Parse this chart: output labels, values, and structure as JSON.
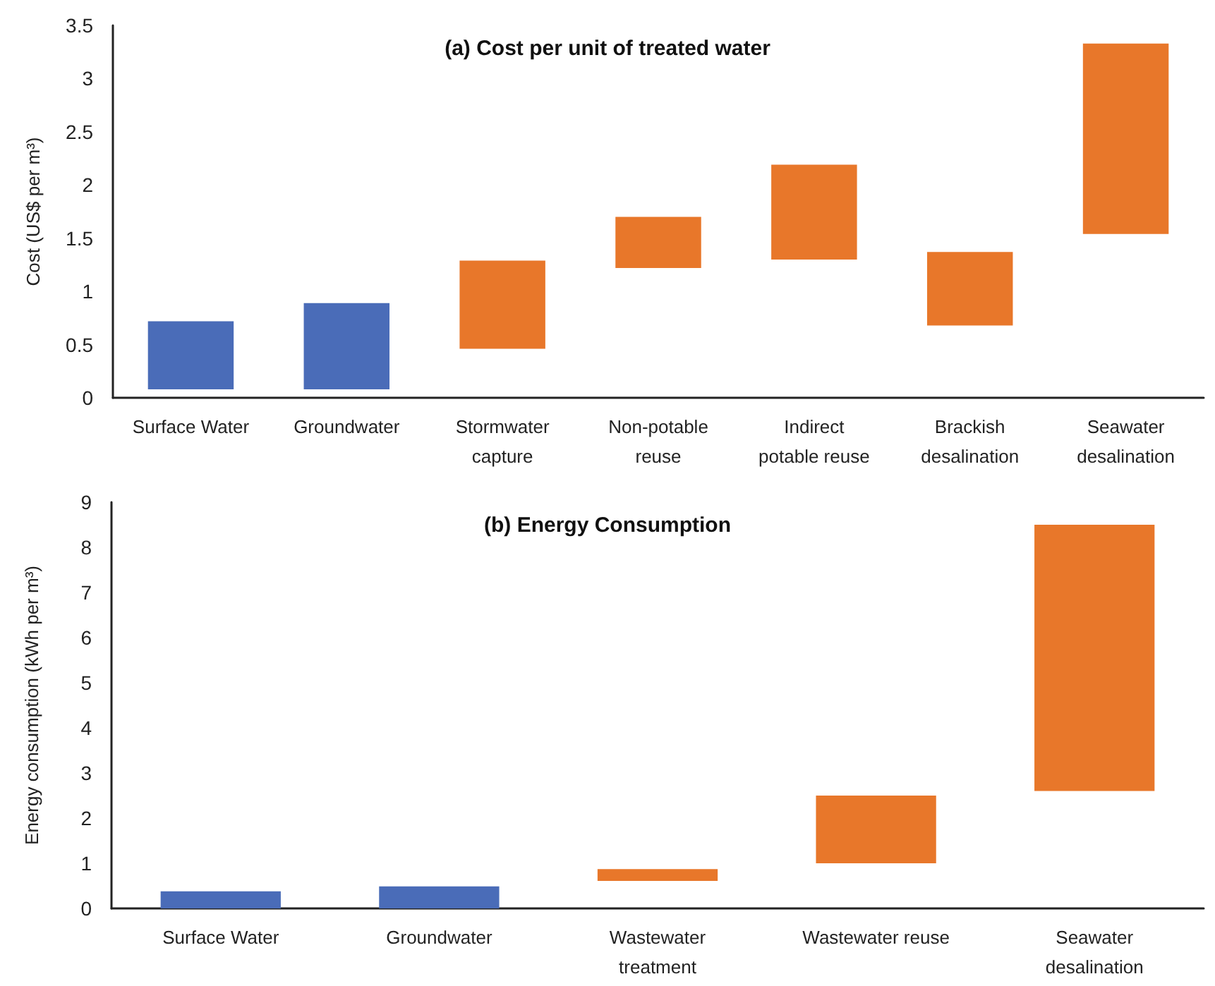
{
  "chart_data": [
    {
      "type": "bar",
      "title": "(a) Cost per unit of treated water",
      "ylabel": "Cost (US$ per m³)",
      "categories": [
        "Surface Water",
        "Groundwater",
        "Stormwater\ncapture",
        "Non-potable\nreuse",
        "Indirect\npotable reuse",
        "Brackish\ndesalination",
        "Seawater\ndesalination"
      ],
      "base": [
        0.08,
        0.08,
        0.46,
        1.22,
        1.3,
        0.68,
        1.54
      ],
      "values": [
        0.64,
        0.81,
        0.83,
        0.48,
        0.89,
        0.69,
        1.79
      ],
      "colors": [
        "#4a6cb8",
        "#4a6cb8",
        "#e8772a",
        "#e8772a",
        "#e8772a",
        "#e8772a",
        "#e8772a"
      ],
      "ylim": [
        0,
        3.5
      ],
      "yticks": [
        0,
        0.5,
        1,
        1.5,
        2,
        2.5,
        3,
        3.5
      ],
      "grid": false
    },
    {
      "type": "bar",
      "title": "(b) Energy Consumption",
      "ylabel": "Energy consumption (kWh per m³)",
      "categories": [
        "Surface Water",
        "Groundwater",
        "Wastewater\ntreatment",
        "Wastewater reuse",
        "Seawater\ndesalination"
      ],
      "base": [
        0,
        0,
        0.61,
        1.0,
        2.6
      ],
      "values": [
        0.38,
        0.49,
        0.26,
        1.5,
        5.9
      ],
      "colors": [
        "#4a6cb8",
        "#4a6cb8",
        "#e8772a",
        "#e8772a",
        "#e8772a"
      ],
      "ylim": [
        0,
        9
      ],
      "yticks": [
        0,
        1,
        2,
        3,
        4,
        5,
        6,
        7,
        8,
        9
      ],
      "grid": false
    }
  ]
}
